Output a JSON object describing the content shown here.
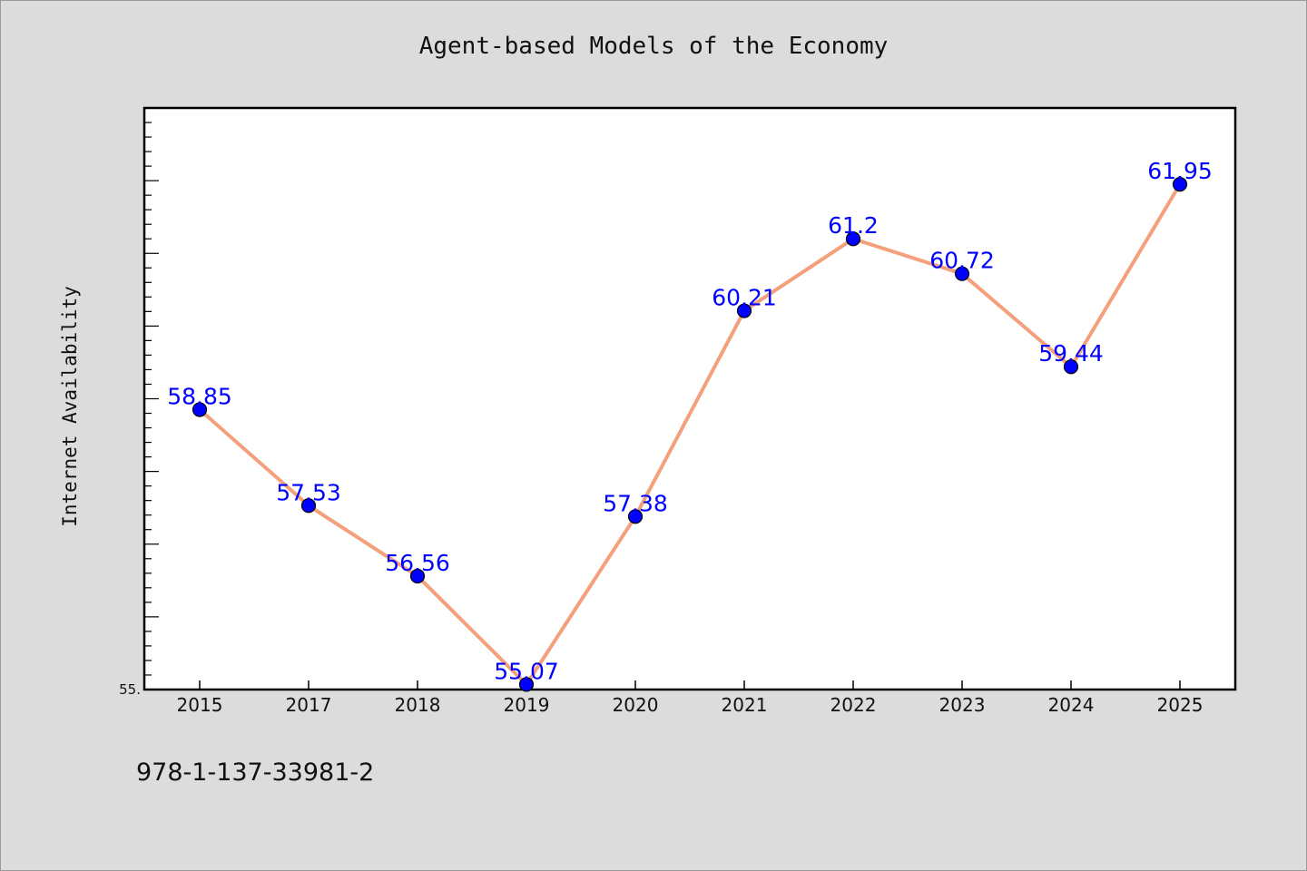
{
  "chart_data": {
    "type": "line",
    "title": "Agent-based Models of the Economy",
    "xlabel": "",
    "ylabel": "Internet Availability",
    "categories": [
      "2015",
      "2017",
      "2018",
      "2019",
      "2020",
      "2021",
      "2022",
      "2023",
      "2024",
      "2025"
    ],
    "series": [
      {
        "values": [
          58.85,
          57.53,
          56.56,
          55.07,
          57.38,
          60.21,
          61.2,
          60.72,
          59.44,
          61.95
        ],
        "data_labels": [
          "58.85",
          "57.53",
          "56.56",
          "55.07",
          "57.38",
          "60.21",
          "61.2",
          "60.72",
          "59.44",
          "61.95"
        ],
        "line_color": "#f4a07c",
        "marker_color": "#0000ff"
      }
    ],
    "ylim": [
      55.0,
      63.0
    ],
    "ytick_labels": [
      {
        "value": 55.0,
        "label": "55."
      }
    ],
    "grid": false
  },
  "footer_text": "978-1-137-33981-2"
}
